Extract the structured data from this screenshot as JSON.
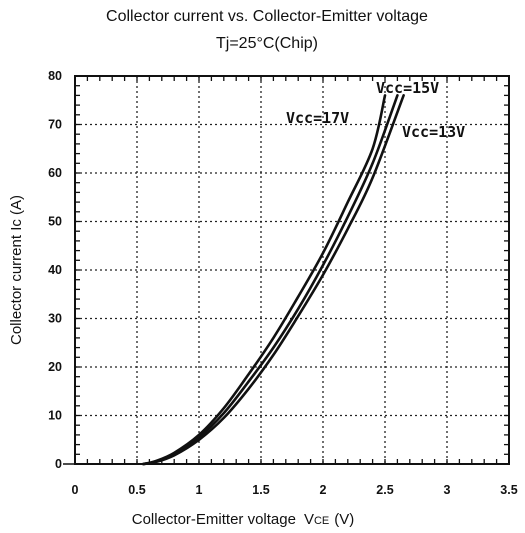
{
  "chart_data": {
    "type": "line",
    "title": "Collector current vs. Collector-Emitter voltage",
    "subtitle": "Tj=25°C(Chip)",
    "xlabel": "Collector-Emitter voltage",
    "xlabel_symbol": "V",
    "xlabel_subscript": "CE",
    "xlabel_unit": "(V)",
    "ylabel": "Collector current Ic (A)",
    "xlim": [
      0,
      3.5
    ],
    "ylim": [
      0,
      80
    ],
    "x_ticks": [
      "0",
      "0.5",
      "1",
      "1.5",
      "2",
      "2.5",
      "3",
      "3.5"
    ],
    "y_ticks": [
      "0",
      "10",
      "20",
      "30",
      "40",
      "50",
      "60",
      "70",
      "80"
    ],
    "grid": true,
    "series": [
      {
        "name": "Vcc=15V",
        "x": [
          0.55,
          0.65,
          0.8,
          1.0,
          1.2,
          1.4,
          1.6,
          1.8,
          2.0,
          2.2,
          2.4,
          2.6
        ],
        "y": [
          0,
          0.5,
          2,
          5.5,
          10.5,
          17,
          24,
          32,
          41,
          51,
          62,
          76
        ]
      },
      {
        "name": "Vcc=17V",
        "x": [
          0.55,
          0.65,
          0.8,
          1.0,
          1.2,
          1.4,
          1.6,
          1.8,
          2.0,
          2.2,
          2.4,
          2.5
        ],
        "y": [
          0,
          0.6,
          2.3,
          6,
          11.5,
          18.5,
          26,
          34.5,
          43.5,
          54,
          65,
          76
        ]
      },
      {
        "name": "Vcc=13V",
        "x": [
          0.55,
          0.65,
          0.8,
          1.0,
          1.2,
          1.4,
          1.6,
          1.8,
          2.0,
          2.2,
          2.4,
          2.65
        ],
        "y": [
          0,
          0.4,
          1.8,
          5,
          9.5,
          15.5,
          22.5,
          30.5,
          39,
          48.5,
          59,
          76
        ]
      }
    ]
  }
}
